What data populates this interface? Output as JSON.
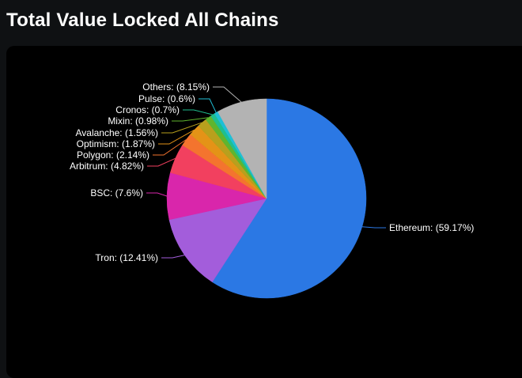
{
  "page": {
    "title": "Total Value Locked All Chains"
  },
  "chart_data": {
    "type": "pie",
    "title": "Total Value Locked All Chains",
    "slices": [
      {
        "name": "Ethereum",
        "label": "Ethereum: (59.17%)",
        "value": 59.17,
        "color": "#2b78e4"
      },
      {
        "name": "Tron",
        "label": "Tron: (12.41%)",
        "value": 12.41,
        "color": "#a35ddb"
      },
      {
        "name": "BSC",
        "label": "BSC: (7.6%)",
        "value": 7.6,
        "color": "#d926ab"
      },
      {
        "name": "Arbitrum",
        "label": "Arbitrum: (4.82%)",
        "value": 4.82,
        "color": "#f2405f"
      },
      {
        "name": "Polygon",
        "label": "Polygon: (2.14%)",
        "value": 2.14,
        "color": "#f4742e"
      },
      {
        "name": "Optimism",
        "label": "Optimism: (1.87%)",
        "value": 1.87,
        "color": "#e49317"
      },
      {
        "name": "Avalanche",
        "label": "Avalanche: (1.56%)",
        "value": 1.56,
        "color": "#b8a01d"
      },
      {
        "name": "Mixin",
        "label": "Mixin: (0.98%)",
        "value": 0.98,
        "color": "#5fb52e"
      },
      {
        "name": "Cronos",
        "label": "Cronos: (0.7%)",
        "value": 0.7,
        "color": "#1fbf8f"
      },
      {
        "name": "Pulse",
        "label": "Pulse: (0.6%)",
        "value": 0.6,
        "color": "#1fbfd6"
      },
      {
        "name": "Others",
        "label": "Others: (8.15%)",
        "value": 8.15,
        "color": "#b3b3b3"
      }
    ]
  }
}
